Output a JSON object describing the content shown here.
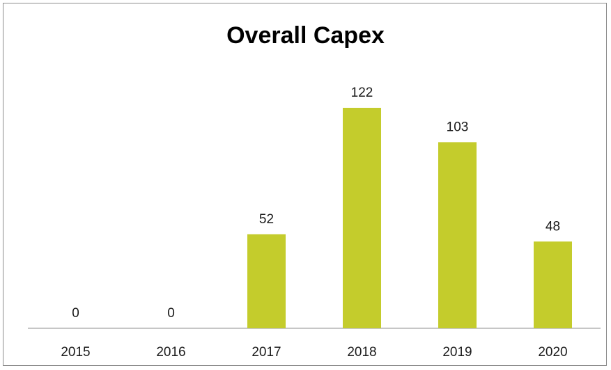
{
  "chart_data": {
    "type": "bar",
    "title": "Overall Capex",
    "xlabel": "",
    "ylabel": "",
    "categories": [
      "2015",
      "2016",
      "2017",
      "2018",
      "2019",
      "2020"
    ],
    "values": [
      0,
      0,
      52,
      122,
      103,
      48
    ],
    "data_labels": [
      "0",
      "0",
      "52",
      "122",
      "103",
      "48"
    ],
    "ylim": [
      0,
      140
    ],
    "grid": false,
    "legend": "none",
    "bar_color": "#c4cc2c"
  }
}
